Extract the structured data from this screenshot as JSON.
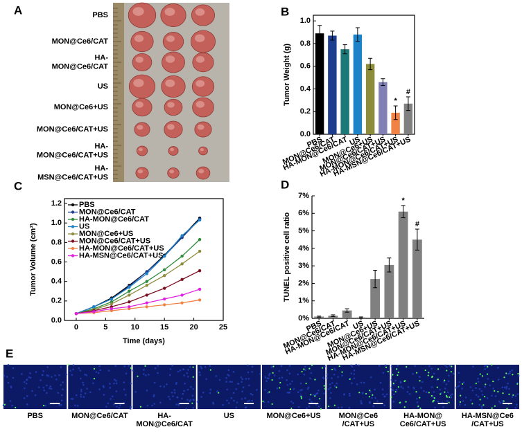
{
  "panel_labels": [
    "A",
    "B",
    "C",
    "D",
    "E"
  ],
  "photo_labels": [
    [
      "PBS"
    ],
    [
      "MON@Ce6/CAT"
    ],
    [
      "HA-",
      "MON@Ce6/CAT"
    ],
    [
      "US"
    ],
    [
      "MON@Ce6+US"
    ],
    [
      "MON@Ce6/CAT+US"
    ],
    [
      "HA-",
      "MON@Ce6/CAT+US"
    ],
    [
      "HA-",
      "MSN@Ce6/CAT+US"
    ]
  ],
  "micro_labels": [
    [
      "PBS"
    ],
    [
      "MON@Ce6/CAT"
    ],
    [
      "HA-",
      "MON@Ce6/CAT"
    ],
    [
      "US"
    ],
    [
      "MON@Ce6+US"
    ],
    [
      "MON@Ce6",
      "/CAT+US"
    ],
    [
      "HA-MON@",
      "Ce6/CAT+US"
    ],
    [
      "HA-MSN@Ce6",
      "/CAT+US"
    ]
  ],
  "chart_data": [
    {
      "type": "bar",
      "ylabel": "Tumor Weight (g)",
      "categories": [
        "PBS",
        "MON@Ce6/CAT",
        "HA-MON@Ce6/CAT",
        "US",
        "MON@Ce6+US",
        "MON@Ce6/CAT+US",
        "HA-MON@Ce6/CAT+US",
        "HA-MSN@Ce6/CAT+US"
      ],
      "values": [
        0.89,
        0.87,
        0.75,
        0.88,
        0.62,
        0.46,
        0.19,
        0.27
      ],
      "errors": [
        0.07,
        0.04,
        0.04,
        0.06,
        0.05,
        0.03,
        0.06,
        0.06
      ],
      "colors": [
        "#000000",
        "#1d3d8f",
        "#1b7a78",
        "#1e82c8",
        "#8c8c3a",
        "#8080b4",
        "#f08244",
        "#808080"
      ],
      "bar_annotations": [
        null,
        null,
        null,
        null,
        null,
        null,
        "*",
        "#"
      ],
      "ylim": [
        0,
        1.05
      ],
      "yticks": [
        {
          "value": 0,
          "label": "0.0"
        },
        0.2,
        0.4,
        0.6,
        0.8,
        {
          "value": 1,
          "label": "1.0"
        }
      ]
    },
    {
      "type": "line",
      "xlabel": "Time (days)",
      "ylabel": "Tumor Volume (cm³)",
      "x": [
        0,
        3,
        6,
        9,
        12,
        15,
        18,
        21
      ],
      "series": [
        {
          "name": "PBS",
          "color": "#000000",
          "values": [
            0.07,
            0.14,
            0.23,
            0.36,
            0.5,
            0.67,
            0.86,
            1.05
          ]
        },
        {
          "name": "MON@Ce6/CAT",
          "color": "#1d3d8f",
          "values": [
            0.07,
            0.14,
            0.22,
            0.35,
            0.5,
            0.66,
            0.85,
            1.04
          ]
        },
        {
          "name": "HA-MON@Ce6/CAT",
          "color": "#2e8b3c",
          "values": [
            0.07,
            0.12,
            0.19,
            0.3,
            0.4,
            0.52,
            0.66,
            0.83
          ]
        },
        {
          "name": "US",
          "color": "#1e82c8",
          "values": [
            0.07,
            0.14,
            0.22,
            0.34,
            0.48,
            0.66,
            0.87,
            1.03
          ]
        },
        {
          "name": "MON@Ce6+US",
          "color": "#8c8c3a",
          "values": [
            0.07,
            0.11,
            0.17,
            0.26,
            0.36,
            0.46,
            0.58,
            0.71
          ]
        },
        {
          "name": "MON@Ce6/CAT+US",
          "color": "#7a1020",
          "values": [
            0.07,
            0.1,
            0.14,
            0.19,
            0.26,
            0.33,
            0.42,
            0.51
          ]
        },
        {
          "name": "HA-MON@Ce6/CAT+US",
          "color": "#f08244",
          "values": [
            0.07,
            0.08,
            0.1,
            0.12,
            0.14,
            0.16,
            0.18,
            0.21
          ]
        },
        {
          "name": "HA-MSN@Ce6/CAT+US",
          "color": "#e020e0",
          "values": [
            0.07,
            0.09,
            0.12,
            0.14,
            0.18,
            0.22,
            0.26,
            0.32
          ]
        }
      ],
      "xlim": [
        -2,
        25
      ],
      "xticks": [
        0,
        5,
        10,
        15,
        20,
        25
      ],
      "ylim": [
        0,
        1.25
      ],
      "yticks": [
        {
          "value": 0,
          "label": "0.0"
        },
        0.2,
        0.4,
        0.6,
        0.8,
        {
          "value": 1,
          "label": "1.0"
        },
        1.2
      ]
    },
    {
      "type": "bar",
      "ylabel": "TUNEL positive cell ratio",
      "categories": [
        "PBS",
        "MON@Ce6/CAT",
        "HA-MON@Ce6/CAT",
        "US",
        "MON@Ce6+US",
        "MON@Ce6/CAT+US",
        "HA-MON@Ce6/CAT+US",
        "HA-MSN@Ce6/CAT+US"
      ],
      "values": [
        0.1,
        0.15,
        0.45,
        0.05,
        2.25,
        3.05,
        6.1,
        4.5
      ],
      "errors": [
        0.03,
        0.05,
        0.1,
        0.03,
        0.5,
        0.4,
        0.35,
        0.6
      ],
      "colors": [
        "#808080",
        "#808080",
        "#808080",
        "#808080",
        "#808080",
        "#808080",
        "#808080",
        "#808080"
      ],
      "bar_annotations": [
        null,
        null,
        null,
        null,
        null,
        null,
        "*",
        "#"
      ],
      "ylim": [
        0,
        7
      ],
      "yticks": [
        {
          "value": 0,
          "label": "0%"
        },
        {
          "value": 1,
          "label": "1%"
        },
        {
          "value": 2,
          "label": "2%"
        },
        {
          "value": 3,
          "label": "3%"
        },
        {
          "value": 4,
          "label": "4%"
        },
        {
          "value": 5,
          "label": "5%"
        },
        {
          "value": 6,
          "label": "6%"
        },
        {
          "value": 7,
          "label": "7%"
        }
      ]
    }
  ]
}
